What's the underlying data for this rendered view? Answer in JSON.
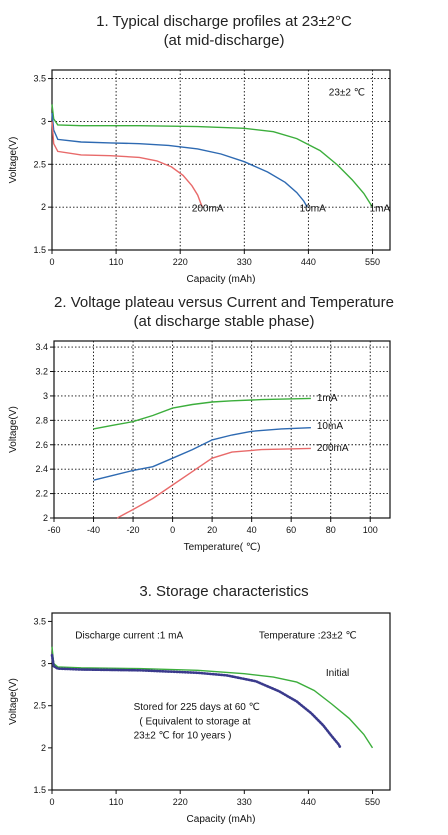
{
  "charts": [
    {
      "title_lines": [
        "1. Typical discharge profiles at 23±2°C",
        "(at mid-discharge)"
      ],
      "annotations": [
        {
          "text": "23±2 ℃",
          "x": 475,
          "y": 3.3
        },
        {
          "text": "200mA",
          "x": 240,
          "y": 1.95
        },
        {
          "text": "10mA",
          "x": 425,
          "y": 1.95
        },
        {
          "text": "1mA",
          "x": 545,
          "y": 1.95
        }
      ]
    },
    {
      "title_lines": [
        "2. Voltage plateau versus Current and Temperature",
        "(at discharge stable phase)"
      ],
      "annotations": [
        {
          "text": "1mA",
          "x": 73,
          "y": 2.96
        },
        {
          "text": "10mA",
          "x": 73,
          "y": 2.73
        },
        {
          "text": "200mA",
          "x": 73,
          "y": 2.55
        }
      ]
    },
    {
      "title_lines": [
        "3. Storage characteristics"
      ],
      "annotations": [
        {
          "text": "Discharge current  :1 mA",
          "x": 40,
          "y": 3.3
        },
        {
          "text": "Temperature  :23±2 ℃",
          "x": 355,
          "y": 3.3
        },
        {
          "text": "Initial",
          "x": 470,
          "y": 2.85
        },
        {
          "text": "Stored for 225 days at 60   ℃",
          "x": 140,
          "y": 2.45
        },
        {
          "text": "( Equivalent to storage at",
          "x": 150,
          "y": 2.28
        },
        {
          "text": "23±2 ℃ for 10 years   )",
          "x": 140,
          "y": 2.11
        }
      ]
    }
  ],
  "chart_data": [
    {
      "type": "line",
      "title": "1. Typical discharge profiles at 23±2°C (at mid-discharge)",
      "xlabel": "Capacity (mAh)",
      "ylabel": "Voltage(V)",
      "xlim": [
        0,
        580
      ],
      "ylim": [
        1.5,
        3.6
      ],
      "xticks": [
        0,
        110,
        220,
        330,
        440,
        550
      ],
      "yticks": [
        1.5,
        2.0,
        2.5,
        3.0,
        3.5
      ],
      "grid": true,
      "series": [
        {
          "name": "1mA",
          "color": "#3cae3c",
          "points": [
            [
              0,
              3.2
            ],
            [
              3,
              3.03
            ],
            [
              10,
              2.96
            ],
            [
              50,
              2.95
            ],
            [
              150,
              2.95
            ],
            [
              250,
              2.94
            ],
            [
              330,
              2.92
            ],
            [
              380,
              2.88
            ],
            [
              420,
              2.8
            ],
            [
              460,
              2.66
            ],
            [
              490,
              2.49
            ],
            [
              515,
              2.32
            ],
            [
              535,
              2.16
            ],
            [
              550,
              2.0
            ]
          ]
        },
        {
          "name": "10mA",
          "color": "#2e6ab2",
          "points": [
            [
              0,
              3.1
            ],
            [
              3,
              2.9
            ],
            [
              10,
              2.79
            ],
            [
              50,
              2.76
            ],
            [
              100,
              2.75
            ],
            [
              150,
              2.74
            ],
            [
              200,
              2.72
            ],
            [
              250,
              2.68
            ],
            [
              290,
              2.62
            ],
            [
              330,
              2.53
            ],
            [
              370,
              2.41
            ],
            [
              400,
              2.29
            ],
            [
              420,
              2.17
            ],
            [
              432,
              2.07
            ],
            [
              438,
              2.0
            ]
          ]
        },
        {
          "name": "200mA",
          "color": "#e86a6a",
          "points": [
            [
              0,
              3.0
            ],
            [
              3,
              2.74
            ],
            [
              10,
              2.65
            ],
            [
              50,
              2.61
            ],
            [
              100,
              2.6
            ],
            [
              150,
              2.58
            ],
            [
              180,
              2.54
            ],
            [
              205,
              2.47
            ],
            [
              225,
              2.37
            ],
            [
              240,
              2.25
            ],
            [
              250,
              2.14
            ],
            [
              255,
              2.05
            ],
            [
              258,
              2.0
            ]
          ]
        }
      ]
    },
    {
      "type": "line",
      "title": "2. Voltage plateau versus Current and Temperature (at discharge stable phase)",
      "xlabel": "Temperature( ℃)",
      "ylabel": "Voltage(V)",
      "xlim": [
        -60,
        110
      ],
      "ylim": [
        2.0,
        3.45
      ],
      "xticks": [
        -60,
        -40,
        -20,
        0,
        20,
        40,
        60,
        80,
        100
      ],
      "yticks": [
        2.0,
        2.2,
        2.4,
        2.6,
        2.8,
        3.0,
        3.2,
        3.4
      ],
      "grid": true,
      "series": [
        {
          "name": "1mA",
          "color": "#3cae3c",
          "points": [
            [
              -40,
              2.73
            ],
            [
              -30,
              2.76
            ],
            [
              -20,
              2.79
            ],
            [
              -10,
              2.84
            ],
            [
              0,
              2.9
            ],
            [
              10,
              2.93
            ],
            [
              20,
              2.95
            ],
            [
              30,
              2.96
            ],
            [
              45,
              2.97
            ],
            [
              70,
              2.98
            ]
          ]
        },
        {
          "name": "10mA",
          "color": "#2e6ab2",
          "points": [
            [
              -40,
              2.31
            ],
            [
              -30,
              2.35
            ],
            [
              -20,
              2.39
            ],
            [
              -10,
              2.42
            ],
            [
              0,
              2.49
            ],
            [
              10,
              2.56
            ],
            [
              20,
              2.64
            ],
            [
              30,
              2.68
            ],
            [
              40,
              2.71
            ],
            [
              55,
              2.73
            ],
            [
              70,
              2.74
            ]
          ]
        },
        {
          "name": "200mA",
          "color": "#e86a6a",
          "points": [
            [
              -28,
              2.0
            ],
            [
              -20,
              2.07
            ],
            [
              -10,
              2.16
            ],
            [
              0,
              2.27
            ],
            [
              10,
              2.38
            ],
            [
              20,
              2.49
            ],
            [
              30,
              2.54
            ],
            [
              45,
              2.56
            ],
            [
              70,
              2.57
            ]
          ]
        }
      ]
    },
    {
      "type": "line",
      "title": "3. Storage characteristics",
      "xlabel": "Capacity (mAh)",
      "ylabel": "Voltage(V)",
      "xlim": [
        0,
        580
      ],
      "ylim": [
        1.5,
        3.6
      ],
      "xticks": [
        0,
        110,
        220,
        330,
        440,
        550
      ],
      "yticks": [
        1.5,
        2.0,
        2.5,
        3.0,
        3.5
      ],
      "grid": false,
      "series": [
        {
          "name": "Initial",
          "color": "#3cae3c",
          "points": [
            [
              0,
              3.2
            ],
            [
              3,
              3.0
            ],
            [
              10,
              2.96
            ],
            [
              50,
              2.95
            ],
            [
              150,
              2.94
            ],
            [
              250,
              2.92
            ],
            [
              330,
              2.88
            ],
            [
              380,
              2.84
            ],
            [
              420,
              2.78
            ],
            [
              450,
              2.68
            ],
            [
              480,
              2.52
            ],
            [
              510,
              2.35
            ],
            [
              535,
              2.16
            ],
            [
              550,
              2.0
            ]
          ]
        },
        {
          "name": "Stored for 225 days at 60 ℃",
          "color": "#3a3a8c",
          "style": "dotted",
          "points": [
            [
              0,
              3.1
            ],
            [
              3,
              2.97
            ],
            [
              10,
              2.94
            ],
            [
              50,
              2.93
            ],
            [
              150,
              2.92
            ],
            [
              250,
              2.89
            ],
            [
              300,
              2.86
            ],
            [
              350,
              2.79
            ],
            [
              390,
              2.67
            ],
            [
              420,
              2.55
            ],
            [
              445,
              2.41
            ],
            [
              465,
              2.27
            ],
            [
              480,
              2.14
            ],
            [
              492,
              2.04
            ],
            [
              495,
              2.0
            ]
          ]
        }
      ]
    }
  ]
}
